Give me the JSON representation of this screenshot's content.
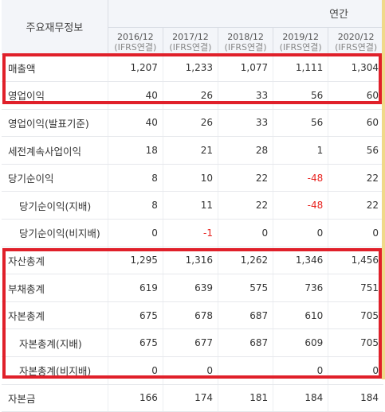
{
  "header": {
    "label": "주요재무정보",
    "period": "연간",
    "columns": [
      {
        "year": "2016/12",
        "basis": "(IFRS연결)"
      },
      {
        "year": "2017/12",
        "basis": "(IFRS연결)"
      },
      {
        "year": "2018/12",
        "basis": "(IFRS연결)"
      },
      {
        "year": "2019/12",
        "basis": "(IFRS연결)"
      },
      {
        "year": "2020/12",
        "basis": "(IFRS연결)"
      }
    ]
  },
  "rows": [
    {
      "label": "매출액",
      "values": [
        "1,207",
        "1,233",
        "1,077",
        "1,111",
        "1,304"
      ]
    },
    {
      "label": "영업이익",
      "values": [
        "40",
        "26",
        "33",
        "56",
        "60"
      ]
    },
    {
      "label": "영업이익(발표기준)",
      "values": [
        "40",
        "26",
        "33",
        "56",
        "60"
      ]
    },
    {
      "label": "세전계속사업이익",
      "values": [
        "18",
        "21",
        "28",
        "1",
        "56"
      ]
    },
    {
      "label": "당기순이익",
      "values": [
        "8",
        "10",
        "22",
        "-48",
        "22"
      ]
    },
    {
      "label": "당기순이익(지배)",
      "values": [
        "8",
        "11",
        "22",
        "-48",
        "22"
      ]
    },
    {
      "label": "당기순이익(비지배)",
      "values": [
        "0",
        "-1",
        "0",
        "0",
        "0"
      ]
    },
    {
      "label": "자산총계",
      "values": [
        "1,295",
        "1,316",
        "1,262",
        "1,346",
        "1,456"
      ]
    },
    {
      "label": "부채총계",
      "values": [
        "619",
        "639",
        "575",
        "736",
        "751"
      ]
    },
    {
      "label": "자본총계",
      "values": [
        "675",
        "678",
        "687",
        "610",
        "705"
      ]
    },
    {
      "label": "자본총계(지배)",
      "values": [
        "675",
        "677",
        "687",
        "609",
        "705"
      ]
    },
    {
      "label": "자본총계(비지배)",
      "values": [
        "0",
        "0",
        "",
        "0",
        "0"
      ]
    },
    {
      "label": "자본금",
      "values": [
        "166",
        "174",
        "181",
        "184",
        "184"
      ]
    }
  ],
  "colors": {
    "highlight": "#e0202a",
    "negative": "#e8231f",
    "header_bg": "#f3f5f9"
  }
}
